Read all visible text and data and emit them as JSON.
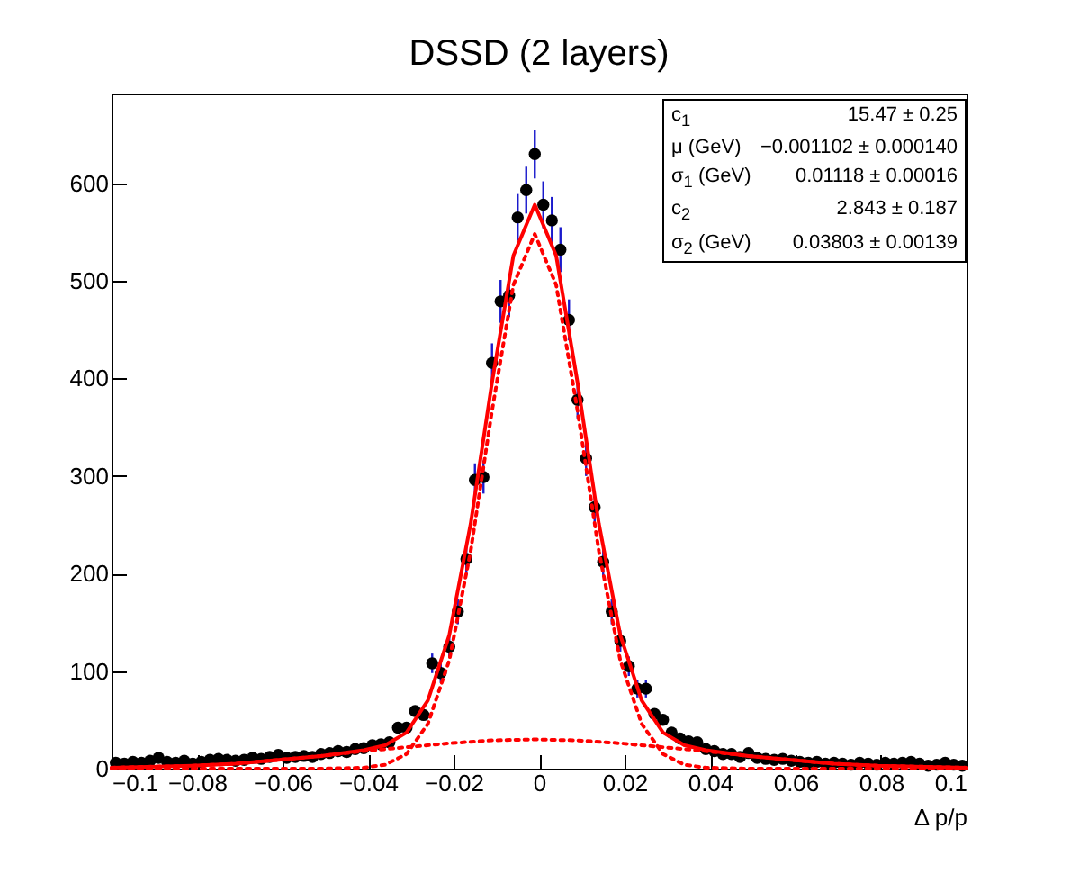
{
  "chart_data": {
    "type": "scatter",
    "title": "DSSD (2 layers)",
    "xlabel": "Δ p/p",
    "xlim": [
      -0.1,
      0.1
    ],
    "ylim": [
      0,
      692
    ],
    "xticks": [
      {
        "value": -0.1,
        "label": "−0.1"
      },
      {
        "value": -0.08,
        "label": "−0.08"
      },
      {
        "value": -0.06,
        "label": "−0.06"
      },
      {
        "value": -0.04,
        "label": "−0.04"
      },
      {
        "value": -0.02,
        "label": "−0.02"
      },
      0,
      0.02,
      0.04,
      0.06,
      0.08,
      0.1
    ],
    "yticks": [
      0,
      100,
      200,
      300,
      400,
      500,
      600
    ],
    "grid": false,
    "annotations": [
      "c$_{1}$",
      "15.47 ± 0.25",
      "μ (GeV)",
      "−0.001102 ± 0.000140",
      "σ$_{1}$ (GeV)",
      "0.01118 ± 0.00016",
      "c$_{2}$",
      "2.843 ± 0.187",
      "σ$_{2}$ (GeV)",
      "0.03803 ± 0.00139"
    ],
    "series": [
      {
        "type": "scatter",
        "color": "#000000",
        "marker": "circle",
        "x": [
          -0.099,
          -0.097,
          -0.095,
          -0.093,
          -0.091,
          -0.089,
          -0.087,
          -0.085,
          -0.083,
          -0.081,
          -0.079,
          -0.077,
          -0.075,
          -0.073,
          -0.071,
          -0.069,
          -0.067,
          -0.065,
          -0.063,
          -0.061,
          -0.059,
          -0.057,
          -0.055,
          -0.053,
          -0.051,
          -0.049,
          -0.047,
          -0.045,
          -0.043,
          -0.041,
          -0.039,
          -0.037,
          -0.035,
          -0.033,
          -0.031,
          -0.029,
          -0.027,
          -0.025,
          -0.023,
          -0.021,
          -0.019,
          -0.017,
          -0.015,
          -0.013,
          -0.011,
          -0.009,
          -0.007,
          -0.005,
          -0.003,
          -0.001,
          0.001,
          0.003,
          0.005,
          0.007,
          0.009,
          0.011,
          0.013,
          0.015,
          0.017,
          0.019,
          0.021,
          0.023,
          0.025,
          0.027,
          0.029,
          0.031,
          0.033,
          0.035,
          0.037,
          0.039,
          0.041,
          0.043,
          0.045,
          0.047,
          0.049,
          0.051,
          0.053,
          0.055,
          0.057,
          0.059,
          0.061,
          0.063,
          0.065,
          0.067,
          0.069,
          0.071,
          0.073,
          0.075,
          0.077,
          0.079,
          0.081,
          0.083,
          0.085,
          0.087,
          0.089,
          0.091,
          0.093,
          0.095,
          0.097,
          0.099
        ],
        "values": [
          6,
          5,
          7,
          6,
          8,
          11,
          7,
          6,
          8,
          5,
          7,
          9,
          10,
          9,
          8,
          9,
          11,
          10,
          12,
          14,
          11,
          12,
          13,
          12,
          15,
          16,
          18,
          17,
          20,
          21,
          24,
          25,
          27,
          42,
          42,
          59,
          55,
          108,
          98,
          125,
          161,
          215,
          296,
          299,
          416,
          479,
          485,
          565,
          593,
          630,
          578,
          562,
          532,
          460,
          378,
          318,
          268,
          212,
          161,
          131,
          105,
          82,
          82,
          56,
          50,
          37,
          31,
          28,
          27,
          20,
          18,
          15,
          15,
          12,
          16,
          11,
          10,
          9,
          10,
          8,
          7,
          6,
          7,
          5,
          6,
          5,
          4,
          6,
          5,
          4,
          6,
          5,
          6,
          7,
          5,
          3,
          4,
          6,
          4,
          3
        ],
        "errors": [
          null,
          null,
          null,
          null,
          null,
          null,
          null,
          null,
          null,
          null,
          null,
          null,
          null,
          null,
          null,
          null,
          null,
          null,
          null,
          null,
          null,
          null,
          null,
          null,
          null,
          null,
          null,
          null,
          null,
          null,
          null,
          null,
          null,
          null,
          null,
          null,
          null,
          10,
          10,
          11,
          13,
          15,
          17,
          17,
          20,
          22,
          22,
          24,
          24,
          25,
          24,
          24,
          23,
          21,
          19,
          18,
          16,
          15,
          13,
          11,
          10,
          9,
          9,
          null,
          null,
          null,
          null,
          null,
          null,
          null,
          null,
          null,
          null,
          null,
          null,
          null,
          null,
          null,
          null,
          null,
          null,
          null,
          null,
          null,
          null,
          null,
          null,
          null,
          null,
          null,
          null,
          null,
          null,
          null,
          null,
          null,
          null,
          null,
          null,
          null
        ]
      },
      {
        "type": "line",
        "color": "#ff0000",
        "line_style": "solid",
        "x": [
          -0.1,
          -0.081,
          -0.071,
          -0.061,
          -0.051,
          -0.041,
          -0.036,
          -0.031,
          -0.026,
          -0.021,
          -0.016,
          -0.011,
          -0.006,
          -0.001,
          0.004,
          0.009,
          0.014,
          0.019,
          0.024,
          0.029,
          0.034,
          0.039,
          0.049,
          0.059,
          0.069,
          0.079,
          0.1
        ],
        "values": [
          1,
          3,
          5,
          9,
          13,
          19,
          24,
          37,
          70,
          137,
          251,
          396,
          526,
          578,
          526,
          396,
          251,
          137,
          70,
          37,
          24,
          19,
          13,
          9,
          5,
          3,
          1
        ]
      },
      {
        "type": "line",
        "color": "#ff0000",
        "line_style": "dotted",
        "x": [
          -0.1,
          -0.051,
          -0.041,
          -0.036,
          -0.031,
          -0.026,
          -0.021,
          -0.016,
          -0.011,
          -0.006,
          -0.001,
          0.004,
          0.009,
          0.014,
          0.019,
          0.024,
          0.029,
          0.034,
          0.039,
          0.049,
          0.1
        ],
        "values": [
          0,
          0,
          1,
          4,
          15,
          46,
          111,
          223,
          367,
          496,
          548,
          496,
          367,
          223,
          111,
          46,
          15,
          4,
          1,
          0,
          0
        ]
      },
      {
        "type": "line",
        "color": "#ff0000",
        "line_style": "dotted",
        "x": [
          -0.1,
          -0.081,
          -0.071,
          -0.061,
          -0.051,
          -0.041,
          -0.031,
          -0.021,
          -0.011,
          -0.001,
          0.009,
          0.019,
          0.029,
          0.039,
          0.049,
          0.059,
          0.069,
          0.079,
          0.1
        ],
        "values": [
          1,
          3,
          5,
          9,
          13,
          18,
          22,
          26,
          29,
          30,
          29,
          26,
          22,
          18,
          13,
          9,
          5,
          3,
          1
        ]
      }
    ]
  }
}
